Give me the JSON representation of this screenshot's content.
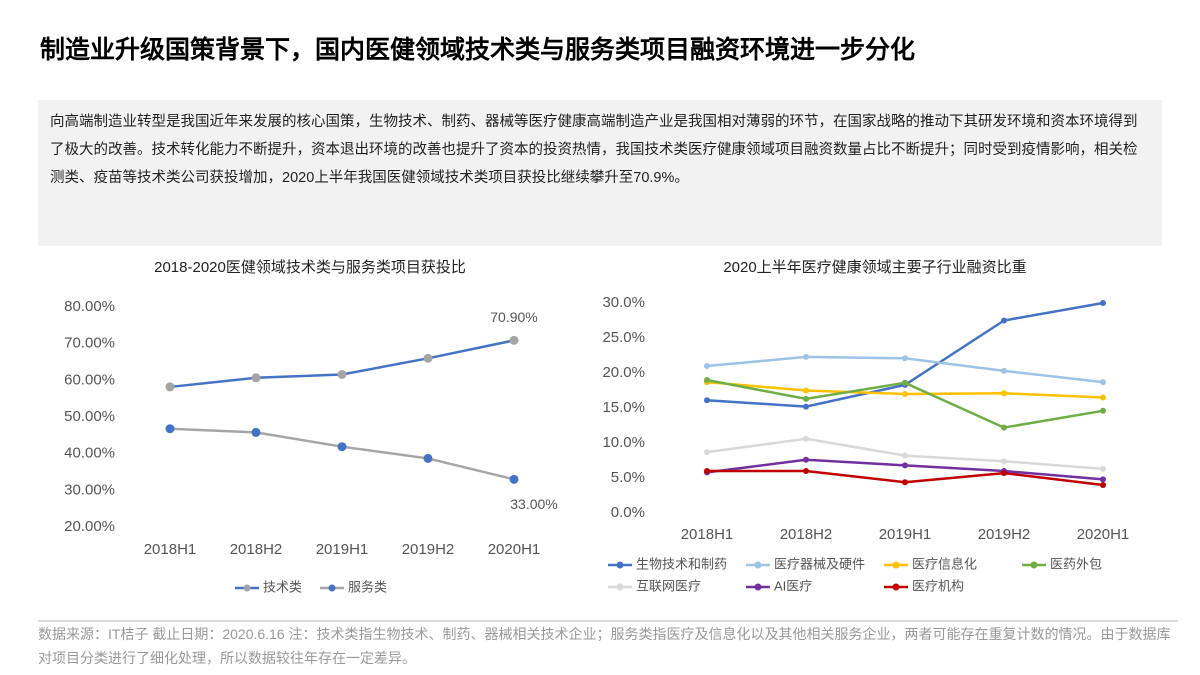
{
  "title": "制造业升级国策背景下，国内医健领域技术类与服务类项目融资环境进一步分化",
  "paragraph": "向高端制造业转型是我国近年来发展的核心国策，生物技术、制药、器械等医疗健康高端制造产业是我国相对薄弱的环节，在国家战略的推动下其研发环境和资本环境得到了极大的改善。技术转化能力不断提升，资本退出环境的改善也提升了资本的投资热情，我国技术类医疗健康领域项目融资数量占比不断提升；同时受到疫情影响，相关检测类、疫苗等技术类公司获投增加，2020上半年我国医健领域技术类项目获投比继续攀升至70.9%。",
  "footnote": "数据来源：IT桔子  截止日期：2020.6.16  注：技术类指生物技术、制药、器械相关技术企业；服务类指医疗及信息化以及其他相关服务企业，两者可能存在重复计数的情况。由于数据库对项目分类进行了细化处理，所以数据较往年存在一定差异。",
  "chart_data": [
    {
      "type": "line",
      "title": "2018-2020医健领域技术类与服务类项目获投比",
      "categories": [
        "2018H1",
        "2018H2",
        "2019H1",
        "2019H2",
        "2020H1"
      ],
      "ylim": [
        20,
        80
      ],
      "yticks": [
        {
          "value": 20,
          "label": "20.00%"
        },
        {
          "value": 30,
          "label": "30.00%"
        },
        {
          "value": 40,
          "label": "40.00%"
        },
        {
          "value": 50,
          "label": "50.00%"
        },
        {
          "value": 60,
          "label": "60.00%"
        },
        {
          "value": 70,
          "label": "70.00%"
        },
        {
          "value": 80,
          "label": "80.00%"
        }
      ],
      "grid": false,
      "series": [
        {
          "name": "技术类",
          "color": "#4472c4",
          "marker_color": "#a5a5a5",
          "values": [
            58.2,
            60.7,
            61.6,
            66.0,
            70.9
          ],
          "value_labels": [
            null,
            null,
            null,
            null,
            "70.90%"
          ]
        },
        {
          "name": "服务类",
          "color": "#a5a5a5",
          "marker_color": "#4472c4",
          "values": [
            46.8,
            45.8,
            41.9,
            38.7,
            33.0
          ],
          "value_labels": [
            null,
            null,
            null,
            null,
            "33.00%"
          ]
        }
      ]
    },
    {
      "type": "line",
      "title": "2020上半年医疗健康领域主要子行业融资比重",
      "categories": [
        "2018H1",
        "2018H2",
        "2019H1",
        "2019H2",
        "2020H1"
      ],
      "ylim": [
        0,
        30
      ],
      "yticks": [
        {
          "value": 0,
          "label": "0.0%"
        },
        {
          "value": 5,
          "label": "5.0%"
        },
        {
          "value": 10,
          "label": "10.0%"
        },
        {
          "value": 15,
          "label": "15.0%"
        },
        {
          "value": 20,
          "label": "20.0%"
        },
        {
          "value": 25,
          "label": "25.0%"
        },
        {
          "value": 30,
          "label": "30.0%"
        }
      ],
      "grid": false,
      "series": [
        {
          "name": "生物技术和制药",
          "color": "#4472c4",
          "values": [
            16.1,
            15.2,
            18.3,
            27.5,
            30.0
          ]
        },
        {
          "name": "医疗器械及硬件",
          "color": "#9dc3e6",
          "values": [
            21.0,
            22.3,
            22.1,
            20.3,
            18.7
          ]
        },
        {
          "name": "医疗信息化",
          "color": "#ffc000",
          "values": [
            18.7,
            17.5,
            17.0,
            17.1,
            16.5
          ]
        },
        {
          "name": "医药外包",
          "color": "#70ad47",
          "values": [
            19.0,
            16.3,
            18.6,
            12.2,
            14.6
          ]
        },
        {
          "name": "互联网医疗",
          "color": "#d9d9d9",
          "values": [
            8.7,
            10.6,
            8.2,
            7.4,
            6.3
          ]
        },
        {
          "name": "AI医疗",
          "color": "#7030a0",
          "values": [
            5.8,
            7.6,
            6.8,
            6.0,
            4.8
          ]
        },
        {
          "name": "医疗机构",
          "color": "#c00000",
          "values": [
            6.0,
            6.0,
            4.4,
            5.7,
            4.0
          ]
        }
      ]
    }
  ]
}
